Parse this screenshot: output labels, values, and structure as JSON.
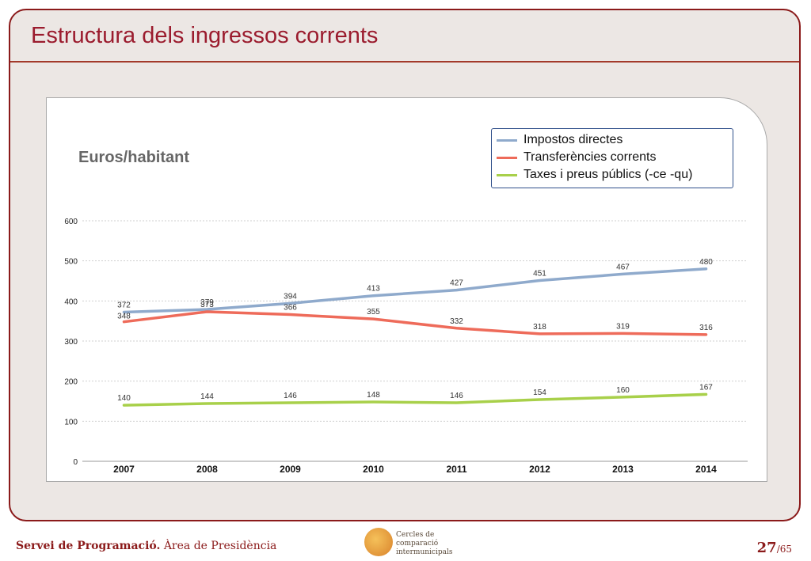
{
  "slide": {
    "title": "Estructura dels ingressos corrents",
    "units_label": "Euros/habitant",
    "footer_bold": "Servei de Programació.",
    "footer_rest": " Àrea de Presidència",
    "page_number": "27",
    "page_total": "/65",
    "logo_text": "Cercles de comparació intermunicipals"
  },
  "colors": {
    "frame_border": "#8b1a1a",
    "title": "#9b1c2e",
    "impostos": "#8faacc",
    "transferencies": "#ee6b5a",
    "taxes": "#a8d04a"
  },
  "chart_data": {
    "type": "line",
    "x": [
      "2007",
      "2008",
      "2009",
      "2010",
      "2011",
      "2012",
      "2013",
      "2014"
    ],
    "y_ticks": [
      "0",
      "100",
      "200",
      "300",
      "400",
      "500",
      "600"
    ],
    "ylim": [
      0,
      600
    ],
    "grid": true,
    "legend_position": "top-right",
    "series": [
      {
        "name": "Impostos directes",
        "color": "#8faacc",
        "values": [
          372,
          379,
          394,
          413,
          427,
          451,
          467,
          480
        ],
        "labels": [
          "372",
          "379",
          "394",
          "413",
          "427",
          "451",
          "467",
          "480"
        ]
      },
      {
        "name": "Transferències corrents",
        "color": "#ee6b5a",
        "values": [
          348,
          373,
          366,
          355,
          332,
          318,
          319,
          316
        ],
        "labels": [
          "348",
          "373",
          "366",
          "355",
          "332",
          "318",
          "319",
          "316"
        ]
      },
      {
        "name": "Taxes i preus públics (-ce -qu)",
        "color": "#a8d04a",
        "values": [
          140,
          144,
          146,
          148,
          146,
          154,
          160,
          167
        ],
        "labels": [
          "140",
          "144",
          "146",
          "148",
          "146",
          "154",
          "160",
          "167"
        ]
      }
    ]
  }
}
